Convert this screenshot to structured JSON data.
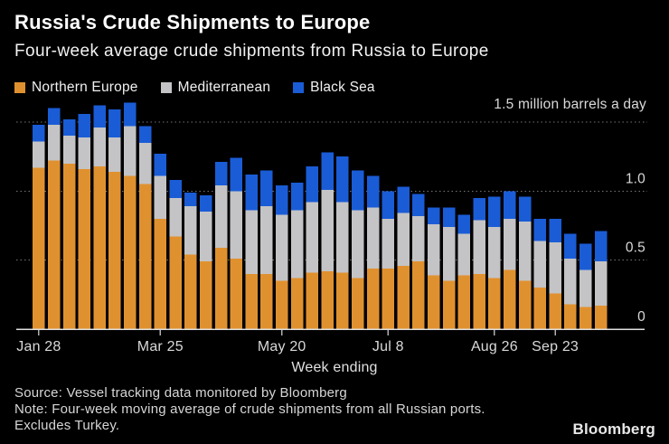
{
  "header": {
    "title": "Russia's Crude Shipments to Europe",
    "subtitle": "Four-week average crude shipments from Russia to Europe"
  },
  "legend": [
    {
      "label": "Northern Europe",
      "color": "#E0912F"
    },
    {
      "label": "Mediterranean",
      "color": "#C4C4C6"
    },
    {
      "label": "Black Sea",
      "color": "#1A5CD6"
    }
  ],
  "colors": {
    "background": "#000000",
    "title_text": "#FFFFFF",
    "axis_text": "#D9D9D9",
    "gridline": "#757575",
    "baseline": "#DEDEDE"
  },
  "chart_data": {
    "type": "bar",
    "stacked": true,
    "n_bars": 38,
    "unit_label": "1.5 million barrels a day",
    "xlabel": "Week ending",
    "ylim": [
      0,
      1.5
    ],
    "gridlines": [
      1.5,
      1.0,
      0.5
    ],
    "yticks": [
      {
        "value": 1.0,
        "label": "1.0"
      },
      {
        "value": 0.5,
        "label": "0.5"
      },
      {
        "value": 0,
        "label": "0"
      }
    ],
    "x_ticks": [
      {
        "index": 0,
        "label": "Jan 28"
      },
      {
        "index": 8,
        "label": "Mar 25"
      },
      {
        "index": 16,
        "label": "May 20"
      },
      {
        "index": 23,
        "label": "Jul 8"
      },
      {
        "index": 30,
        "label": "Aug 26"
      },
      {
        "index": 34,
        "label": "Sep 23"
      }
    ],
    "series": [
      {
        "name": "Northern Europe",
        "color": "#E0912F",
        "values": [
          1.17,
          1.22,
          1.2,
          1.16,
          1.18,
          1.14,
          1.11,
          1.05,
          0.8,
          0.67,
          0.54,
          0.49,
          0.59,
          0.51,
          0.4,
          0.4,
          0.35,
          0.37,
          0.41,
          0.42,
          0.41,
          0.37,
          0.44,
          0.44,
          0.46,
          0.49,
          0.39,
          0.35,
          0.39,
          0.4,
          0.37,
          0.43,
          0.35,
          0.3,
          0.26,
          0.18,
          0.16,
          0.17
        ]
      },
      {
        "name": "Mediterranean",
        "color": "#C4C4C6",
        "values": [
          0.19,
          0.26,
          0.2,
          0.23,
          0.28,
          0.25,
          0.36,
          0.3,
          0.31,
          0.28,
          0.35,
          0.36,
          0.45,
          0.49,
          0.46,
          0.49,
          0.48,
          0.49,
          0.51,
          0.59,
          0.51,
          0.49,
          0.44,
          0.36,
          0.38,
          0.33,
          0.37,
          0.39,
          0.3,
          0.39,
          0.37,
          0.37,
          0.43,
          0.34,
          0.37,
          0.33,
          0.27,
          0.32
        ]
      },
      {
        "name": "Black Sea",
        "color": "#1A5CD6",
        "values": [
          0.12,
          0.12,
          0.12,
          0.17,
          0.16,
          0.2,
          0.17,
          0.12,
          0.16,
          0.13,
          0.1,
          0.12,
          0.17,
          0.24,
          0.26,
          0.26,
          0.21,
          0.2,
          0.26,
          0.27,
          0.33,
          0.29,
          0.23,
          0.2,
          0.19,
          0.16,
          0.12,
          0.14,
          0.14,
          0.16,
          0.22,
          0.2,
          0.18,
          0.16,
          0.17,
          0.18,
          0.19,
          0.22
        ]
      }
    ]
  },
  "footer": {
    "source": "Source: Vessel tracking data monitored by Bloomberg",
    "note": "Note: Four-week moving average of crude shipments from all Russian ports.",
    "note2": "Excludes Turkey.",
    "brand": "Bloomberg"
  }
}
